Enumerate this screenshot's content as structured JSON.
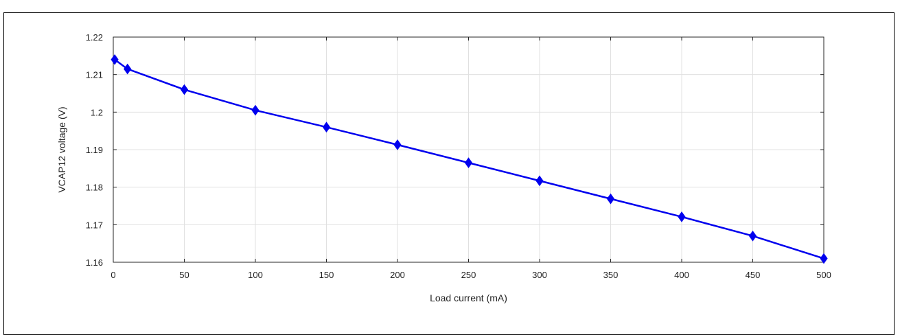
{
  "chart_data": {
    "type": "line",
    "title": "",
    "xlabel": "Load current (mA)",
    "ylabel": "VCAP12 voltage (V)",
    "xlim": [
      0,
      500
    ],
    "ylim": [
      1.16,
      1.22
    ],
    "xticks": [
      "0",
      "50",
      "100",
      "150",
      "200",
      "250",
      "300",
      "350",
      "400",
      "450",
      "500"
    ],
    "yticks": [
      "1.16",
      "1.17",
      "1.18",
      "1.19",
      "1.2",
      "1.21",
      "1.22"
    ],
    "grid": true,
    "series": [
      {
        "color": "#0000ee",
        "marker": "diamond",
        "x": [
          1,
          10,
          50,
          100,
          150,
          200,
          250,
          300,
          350,
          400,
          450,
          500
        ],
        "y": [
          1.214,
          1.2115,
          1.206,
          1.2005,
          1.196,
          1.1913,
          1.1865,
          1.1817,
          1.1769,
          1.1721,
          1.167,
          1.161
        ]
      }
    ]
  }
}
